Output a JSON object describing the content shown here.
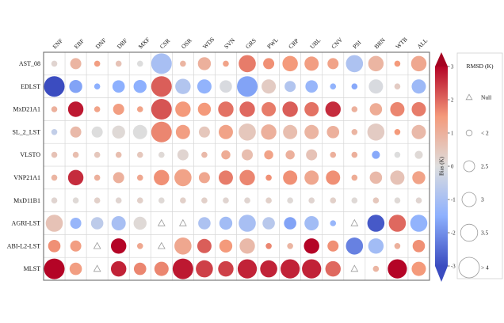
{
  "chart_data": {
    "type": "heatmap",
    "subtype": "bubble-matrix",
    "title": "",
    "columns": [
      "ENF",
      "EBF",
      "DNF",
      "DBF",
      "MXF",
      "CSR",
      "OSR",
      "WDS",
      "SVN",
      "GRS",
      "PWL",
      "CRP",
      "UBL",
      "CNV",
      "PSI",
      "BRN",
      "WTB",
      "ALL"
    ],
    "rows": [
      "AST_08",
      "EDLST",
      "MxD21A1",
      "SL_2_LST",
      "VLSTO",
      "VNP21A1",
      "MxD11B1",
      "AGRI-LST",
      "ABI-L2-LST",
      "MLST"
    ],
    "cell_encoding": "each cell = [bias_K, rmsd_K] ; 'null' = no data (triangle marker)",
    "cells": [
      [
        [
          0.2,
          2
        ],
        [
          0.9,
          2.5
        ],
        [
          1.4,
          2
        ],
        [
          0.6,
          2
        ],
        [
          0.0,
          2
        ],
        [
          -1.0,
          4
        ],
        [
          0.9,
          2
        ],
        [
          1.0,
          2.8
        ],
        [
          1.3,
          2
        ],
        [
          1.8,
          3.5
        ],
        [
          1.6,
          2.5
        ],
        [
          1.5,
          3.2
        ],
        [
          1.4,
          3
        ],
        [
          1.3,
          2.5
        ],
        [
          -0.9,
          3.5
        ],
        [
          0.9,
          3.2
        ],
        [
          1.5,
          2
        ],
        [
          1.2,
          3.2
        ]
      ],
      [
        [
          -3.0,
          4
        ],
        [
          -1.7,
          2.8
        ],
        [
          -1.5,
          2
        ],
        [
          -1.5,
          2.7
        ],
        [
          -1.5,
          2.8
        ],
        [
          2.1,
          4
        ],
        [
          -0.8,
          3.2
        ],
        [
          -1.4,
          3
        ],
        [
          -0.1,
          2.7
        ],
        [
          -1.7,
          4
        ],
        [
          0.4,
          3
        ],
        [
          -0.8,
          2.5
        ],
        [
          -1.3,
          2.7
        ],
        [
          -1.4,
          2
        ],
        [
          -1.6,
          2
        ],
        [
          -0.1,
          3
        ],
        [
          0.4,
          2
        ],
        [
          -1.2,
          3
        ]
      ],
      [
        [
          1.0,
          2
        ],
        [
          2.8,
          3.2
        ],
        [
          1.3,
          2
        ],
        [
          1.4,
          2.5
        ],
        [
          1.3,
          2
        ],
        [
          2.2,
          4
        ],
        [
          1.5,
          3.2
        ],
        [
          1.5,
          2.8
        ],
        [
          1.9,
          3.2
        ],
        [
          2.0,
          3.2
        ],
        [
          1.8,
          3
        ],
        [
          2.1,
          3.2
        ],
        [
          1.9,
          3
        ],
        [
          2.6,
          3.2
        ],
        [
          1.0,
          2
        ],
        [
          1.1,
          2.7
        ],
        [
          1.7,
          3
        ],
        [
          1.8,
          3
        ]
      ],
      [
        [
          -0.5,
          2
        ],
        [
          0.8,
          2.5
        ],
        [
          0.0,
          2.5
        ],
        [
          0.1,
          2.8
        ],
        [
          0.0,
          3
        ],
        [
          1.7,
          4
        ],
        [
          1.4,
          3
        ],
        [
          0.5,
          2.5
        ],
        [
          1.3,
          3
        ],
        [
          0.5,
          3.5
        ],
        [
          1.0,
          3.2
        ],
        [
          0.7,
          3
        ],
        [
          0.9,
          3
        ],
        [
          1.0,
          2.7
        ],
        [
          0.9,
          2
        ],
        [
          0.4,
          3.5
        ],
        [
          1.5,
          2
        ],
        [
          0.8,
          3
        ]
      ],
      [
        [
          0.6,
          2
        ],
        [
          0.7,
          2
        ],
        [
          0.5,
          2
        ],
        [
          0.7,
          2
        ],
        [
          0.5,
          2
        ],
        [
          0.1,
          2
        ],
        [
          0.2,
          2.5
        ],
        [
          0.8,
          2
        ],
        [
          1.1,
          2.3
        ],
        [
          0.7,
          2.5
        ],
        [
          1.3,
          2.3
        ],
        [
          1.0,
          2.3
        ],
        [
          0.6,
          2.5
        ],
        [
          1.0,
          2
        ],
        [
          1.0,
          2
        ],
        [
          -1.6,
          2.2
        ],
        [
          0.0,
          2
        ],
        [
          0.1,
          2.2
        ]
      ],
      [
        [
          0.9,
          2
        ],
        [
          2.6,
          3.2
        ],
        [
          1.0,
          2
        ],
        [
          1.0,
          2.5
        ],
        [
          1.2,
          2
        ],
        [
          1.6,
          3.2
        ],
        [
          1.3,
          3.5
        ],
        [
          1.2,
          2.5
        ],
        [
          1.8,
          3
        ],
        [
          1.7,
          3.2
        ],
        [
          1.6,
          2
        ],
        [
          1.6,
          3
        ],
        [
          1.2,
          3
        ],
        [
          1.6,
          3
        ],
        [
          1.1,
          2
        ],
        [
          0.8,
          2.7
        ],
        [
          0.6,
          3
        ],
        [
          1.3,
          2.8
        ]
      ],
      [
        [
          0.2,
          2
        ],
        [
          0.1,
          2
        ],
        [
          0.3,
          2
        ],
        [
          0.2,
          2
        ],
        [
          0.3,
          2
        ],
        [
          0.1,
          2
        ],
        [
          0.3,
          2
        ],
        [
          0.3,
          2
        ],
        [
          0.2,
          2
        ],
        [
          0.2,
          2
        ],
        [
          0.3,
          2
        ],
        [
          0.1,
          2
        ],
        [
          0.2,
          2
        ],
        [
          0.3,
          2
        ],
        [
          0.1,
          2
        ],
        [
          0.5,
          2
        ],
        [
          0.1,
          2
        ],
        [
          0.2,
          2
        ]
      ],
      [
        [
          0.6,
          3.5
        ],
        [
          -1.3,
          2.5
        ],
        [
          -0.6,
          2.7
        ],
        [
          -1.0,
          3
        ],
        [
          0.1,
          2.8
        ],
        "null",
        "null",
        [
          -0.9,
          2.7
        ],
        [
          -1.1,
          2.8
        ],
        [
          -1.0,
          3.5
        ],
        [
          -0.7,
          2.7
        ],
        [
          -1.7,
          2.7
        ],
        [
          -1.1,
          3
        ],
        [
          -1.3,
          2
        ],
        "null",
        [
          -2.8,
          3.5
        ],
        [
          2.0,
          3.5
        ],
        [
          -1.4,
          3.5
        ]
      ],
      [
        [
          1.6,
          2.7
        ],
        [
          1.4,
          2.5
        ],
        "null",
        [
          3.0,
          3.2
        ],
        [
          1.2,
          2
        ],
        "null",
        [
          1.2,
          3.5
        ],
        [
          2.1,
          3
        ],
        [
          1.5,
          2.8
        ],
        [
          0.8,
          3.2
        ],
        [
          1.7,
          2
        ],
        [
          0.9,
          2
        ],
        [
          3.0,
          3.2
        ],
        [
          1.6,
          2.5
        ],
        [
          -2.2,
          3.5
        ],
        [
          -1.1,
          3.2
        ],
        [
          1.0,
          2
        ],
        [
          1.6,
          2.7
        ]
      ],
      [
        [
          3.0,
          4
        ],
        [
          1.4,
          2.7
        ],
        "null",
        [
          2.7,
          3.2
        ],
        [
          1.7,
          2.7
        ],
        [
          1.7,
          3
        ],
        [
          2.8,
          4
        ],
        [
          2.4,
          3.5
        ],
        [
          2.4,
          3.2
        ],
        [
          2.7,
          3.8
        ],
        [
          2.7,
          3.5
        ],
        [
          2.7,
          3.8
        ],
        [
          2.7,
          3.8
        ],
        [
          2.0,
          3.2
        ],
        "null",
        [
          0.9,
          2
        ],
        [
          3.0,
          3.8
        ],
        [
          1.5,
          3
        ]
      ]
    ],
    "colorbar": {
      "label": "Bias (K)",
      "ticks": [
        3,
        2,
        1,
        0,
        -1,
        -2,
        -3
      ],
      "min": -3,
      "max": 3,
      "colormap": "coolwarm",
      "anchor_colors": [
        "#3b4cc0",
        "#8db0fe",
        "#dddddd",
        "#f49a7b",
        "#b40426"
      ]
    },
    "size_legend": {
      "title": "RMSD (K)",
      "entries": [
        {
          "symbol": "triangle",
          "label": "Null"
        },
        {
          "symbol": "circle",
          "label": "< 2",
          "rmsd": 2
        },
        {
          "symbol": "circle",
          "label": "2.5",
          "rmsd": 2.5
        },
        {
          "symbol": "circle",
          "label": "3",
          "rmsd": 3
        },
        {
          "symbol": "circle",
          "label": "3.5",
          "rmsd": 3.5
        },
        {
          "symbol": "circle",
          "label": "> 4",
          "rmsd": 4
        }
      ]
    },
    "grid": true,
    "legend_position": "right"
  }
}
